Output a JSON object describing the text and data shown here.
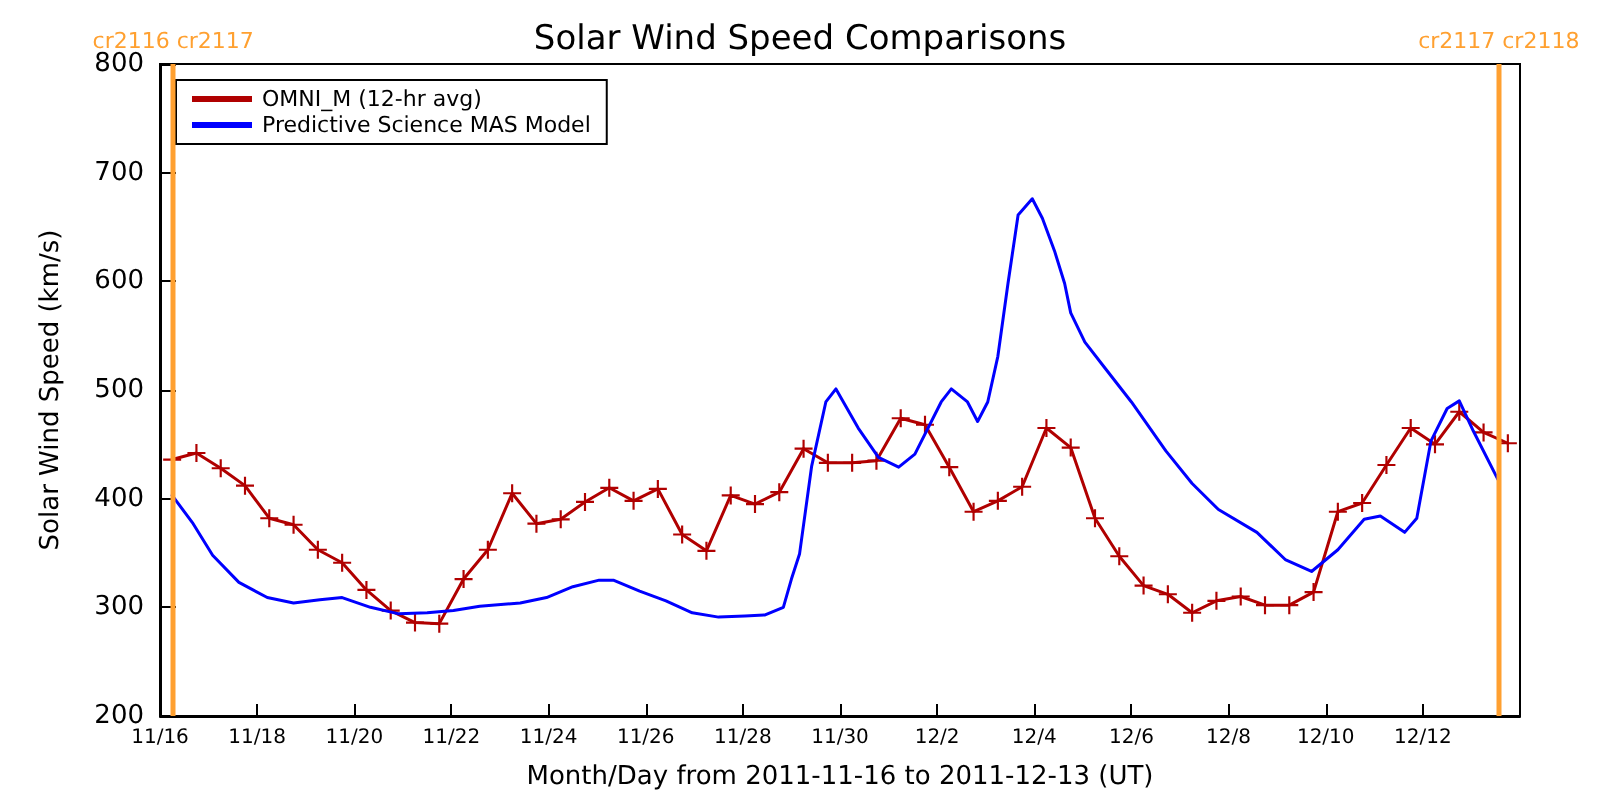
{
  "chart_data": {
    "type": "line",
    "title": "Solar Wind Speed Comparisons",
    "xlabel": "Month/Day from 2011-11-16 to 2011-12-13 (UT)",
    "ylabel": "Solar Wind Speed (km/s)",
    "xlim": [
      "2011-11-16",
      "2011-12-14"
    ],
    "xticks": [
      {
        "value": "2011-11-16",
        "label": "11/16"
      },
      {
        "value": "2011-11-18",
        "label": "11/18"
      },
      {
        "value": "2011-11-20",
        "label": "11/20"
      },
      {
        "value": "2011-11-22",
        "label": "11/22"
      },
      {
        "value": "2011-11-24",
        "label": "11/24"
      },
      {
        "value": "2011-11-26",
        "label": "11/26"
      },
      {
        "value": "2011-11-28",
        "label": "11/28"
      },
      {
        "value": "2011-11-30",
        "label": "11/30"
      },
      {
        "value": "2011-12-02",
        "label": "12/2"
      },
      {
        "value": "2011-12-04",
        "label": "12/4"
      },
      {
        "value": "2011-12-06",
        "label": "12/6"
      },
      {
        "value": "2011-12-08",
        "label": "12/8"
      },
      {
        "value": "2011-12-10",
        "label": "12/10"
      },
      {
        "value": "2011-12-12",
        "label": "12/12"
      }
    ],
    "ylim": [
      200,
      800
    ],
    "yticks": [
      200,
      300,
      400,
      500,
      600,
      700,
      800
    ],
    "grid": false,
    "legend": "top left",
    "line_style": "solid",
    "ref_lines": [
      {
        "axis": "x",
        "value": "2011-11-16T06:30",
        "label": "cr2116 cr2117",
        "color": "#ffa030"
      },
      {
        "axis": "x",
        "value": "2011-12-13T13:30",
        "label": "cr2117 cr2118",
        "color": "#ffa030"
      }
    ],
    "series": [
      {
        "name": "OMNI_M (12-hr avg)",
        "color": "#b00000",
        "marker": "cross",
        "x": [
          "2011-11-16T06:00",
          "2011-11-16T18:00",
          "2011-11-17T06:00",
          "2011-11-17T18:00",
          "2011-11-18T06:00",
          "2011-11-18T18:00",
          "2011-11-19T06:00",
          "2011-11-19T18:00",
          "2011-11-20T06:00",
          "2011-11-20T18:00",
          "2011-11-21T06:00",
          "2011-11-21T18:00",
          "2011-11-22T06:00",
          "2011-11-22T18:00",
          "2011-11-23T06:00",
          "2011-11-23T18:00",
          "2011-11-24T06:00",
          "2011-11-24T18:00",
          "2011-11-25T06:00",
          "2011-11-25T18:00",
          "2011-11-26T06:00",
          "2011-11-26T18:00",
          "2011-11-27T06:00",
          "2011-11-27T18:00",
          "2011-11-28T06:00",
          "2011-11-28T18:00",
          "2011-11-29T06:00",
          "2011-11-29T18:00",
          "2011-11-30T06:00",
          "2011-11-30T18:00",
          "2011-12-01T06:00",
          "2011-12-01T18:00",
          "2011-12-02T06:00",
          "2011-12-02T18:00",
          "2011-12-03T06:00",
          "2011-12-03T18:00",
          "2011-12-04T06:00",
          "2011-12-04T18:00",
          "2011-12-05T06:00",
          "2011-12-05T18:00",
          "2011-12-06T06:00",
          "2011-12-06T18:00",
          "2011-12-07T06:00",
          "2011-12-07T18:00",
          "2011-12-08T06:00",
          "2011-12-08T18:00",
          "2011-12-09T06:00",
          "2011-12-09T18:00",
          "2011-12-10T06:00",
          "2011-12-10T18:00",
          "2011-12-11T06:00",
          "2011-12-11T18:00",
          "2011-12-12T06:00",
          "2011-12-12T18:00",
          "2011-12-13T06:00",
          "2011-12-13T18:00"
        ],
        "values": [
          436,
          442,
          428,
          412,
          382,
          376,
          353,
          341,
          316,
          297,
          286,
          285,
          326,
          353,
          405,
          377,
          381,
          397,
          410,
          398,
          409,
          367,
          352,
          403,
          395,
          406,
          446,
          433,
          433,
          435,
          474,
          468,
          429,
          388,
          398,
          411,
          465,
          447,
          382,
          347,
          320,
          312,
          295,
          306,
          310,
          302,
          302,
          314,
          388,
          396,
          431,
          465,
          450,
          480,
          461,
          451
        ]
      },
      {
        "name": "Predictive Science MAS Model",
        "color": "#0000ff",
        "marker": "none",
        "x": [
          "2011-11-16T06:00",
          "2011-11-16T16:00",
          "2011-11-17T02:00",
          "2011-11-17T15:00",
          "2011-11-18T05:00",
          "2011-11-18T18:00",
          "2011-11-19T07:00",
          "2011-11-19T18:00",
          "2011-11-20T08:00",
          "2011-11-20T22:00",
          "2011-11-21T12:00",
          "2011-11-22T01:00",
          "2011-11-22T14:00",
          "2011-11-23T10:00",
          "2011-11-23T23:00",
          "2011-11-24T12:00",
          "2011-11-25T01:00",
          "2011-11-25T08:00",
          "2011-11-25T21:00",
          "2011-11-26T10:00",
          "2011-11-26T23:00",
          "2011-11-27T12:00",
          "2011-11-28T01:00",
          "2011-11-28T11:00",
          "2011-11-28T20:00",
          "2011-11-29T00:00",
          "2011-11-29T04:00",
          "2011-11-29T10:00",
          "2011-11-29T17:00",
          "2011-11-29T22:00",
          "2011-11-30T09:00",
          "2011-11-30T19:00",
          "2011-12-01T05:00",
          "2011-12-01T13:00",
          "2011-12-02T02:00",
          "2011-12-02T07:00",
          "2011-12-02T15:00",
          "2011-12-02T20:00",
          "2011-12-03T01:00",
          "2011-12-03T06:00",
          "2011-12-03T11:00",
          "2011-12-03T16:00",
          "2011-12-03T23:00",
          "2011-12-04T04:00",
          "2011-12-04T10:00",
          "2011-12-04T15:00",
          "2011-12-04T18:00",
          "2011-12-05T01:00",
          "2011-12-05T11:00",
          "2011-12-06T00:00",
          "2011-12-06T17:00",
          "2011-12-07T06:00",
          "2011-12-07T19:00",
          "2011-12-08T14:00",
          "2011-12-09T04:00",
          "2011-12-09T17:00",
          "2011-12-10T06:00",
          "2011-12-10T19:00",
          "2011-12-11T03:00",
          "2011-12-11T15:00",
          "2011-12-11T21:00",
          "2011-12-12T04:00",
          "2011-12-12T12:00",
          "2011-12-12T18:00",
          "2011-12-13T01:00",
          "2011-12-13T13:00"
        ],
        "values": [
          403,
          378,
          348,
          323,
          309,
          304,
          307,
          309,
          300,
          294,
          295,
          297,
          301,
          304,
          309,
          319,
          325,
          325,
          315,
          306,
          295,
          291,
          292,
          293,
          300,
          326,
          349,
          430,
          489,
          501,
          465,
          438,
          429,
          441,
          489,
          501,
          489,
          471,
          489,
          531,
          598,
          661,
          676,
          658,
          628,
          598,
          571,
          544,
          520,
          489,
          444,
          414,
          390,
          369,
          344,
          333,
          353,
          381,
          384,
          369,
          382,
          453,
          483,
          490,
          462,
          418
        ]
      }
    ]
  }
}
